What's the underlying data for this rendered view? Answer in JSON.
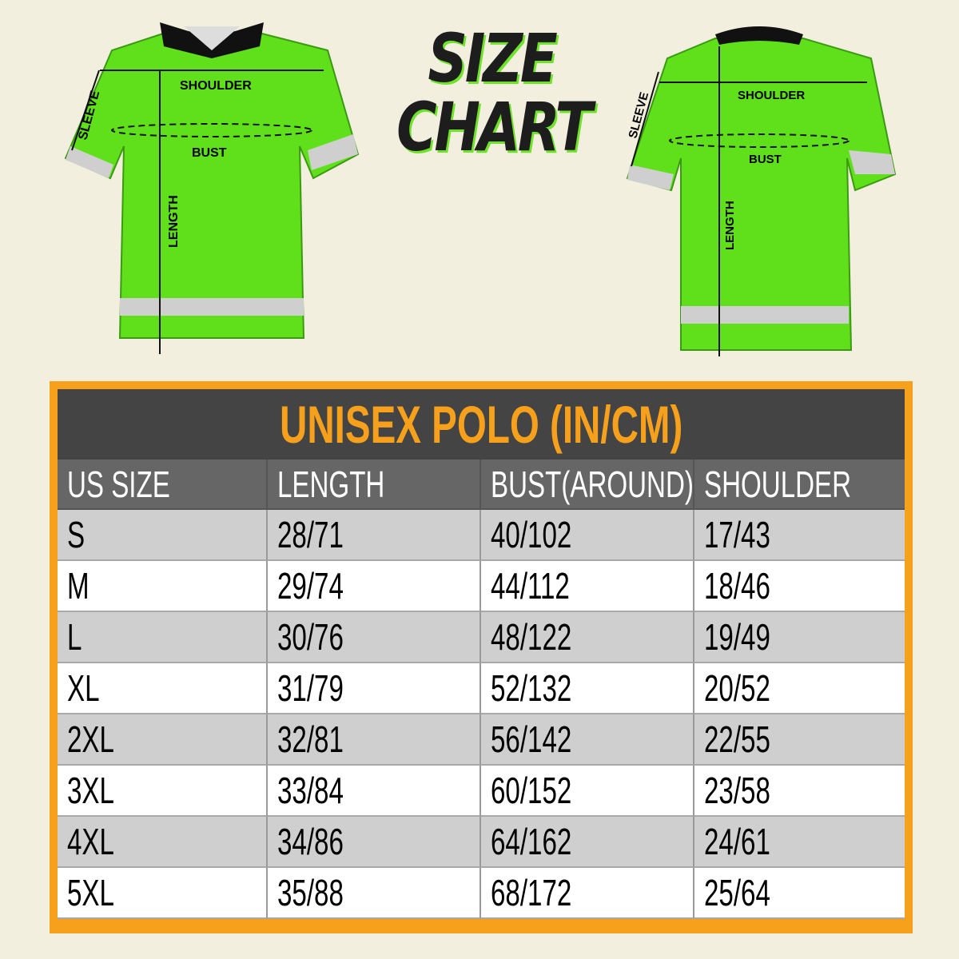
{
  "header": {
    "title_line1": "SIZE",
    "title_line2": "CHART"
  },
  "front_shirt": {
    "labels": {
      "shoulder": "SHOULDER",
      "bust": "BUST",
      "length": "LENGTH",
      "sleeve": "SLEEVE"
    }
  },
  "back_shirt": {
    "labels": {
      "shoulder": "SHOULDER",
      "bust": "BUST",
      "length": "LENGTH",
      "sleeve": "SLEEVE"
    }
  },
  "colors": {
    "shirt": "#5fe01a",
    "accent": "#f7a01b",
    "title_bar": "#444444",
    "header_row": "#666666"
  },
  "table": {
    "title": "UNISEX POLO (IN/CM)",
    "columns": [
      "US SIZE",
      "LENGTH",
      "BUST(AROUND)",
      "SHOULDER"
    ],
    "rows": [
      [
        "S",
        "28/71",
        "40/102",
        "17/43"
      ],
      [
        "M",
        "29/74",
        "44/112",
        "18/46"
      ],
      [
        "L",
        "30/76",
        "48/122",
        "19/49"
      ],
      [
        "XL",
        "31/79",
        "52/132",
        "20/52"
      ],
      [
        "2XL",
        "32/81",
        "56/142",
        "22/55"
      ],
      [
        "3XL",
        "33/84",
        "60/152",
        "23/58"
      ],
      [
        "4XL",
        "34/86",
        "64/162",
        "24/61"
      ],
      [
        "5XL",
        "35/88",
        "68/172",
        "25/64"
      ]
    ]
  }
}
